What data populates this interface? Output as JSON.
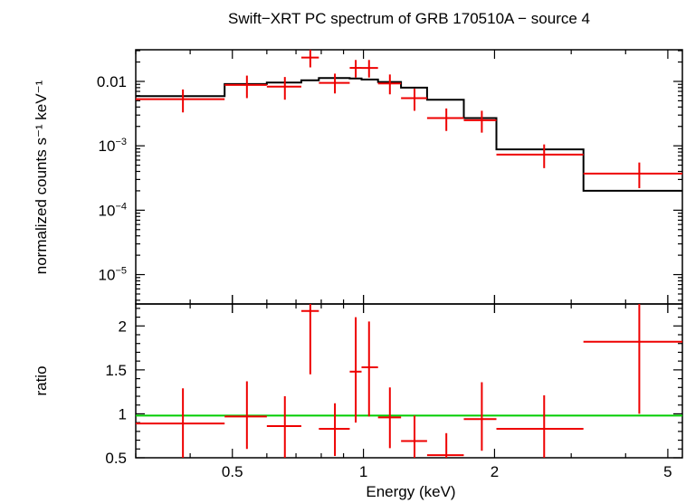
{
  "chart_data": {
    "type": "scatter",
    "title": "Swift−XRT PC spectrum of GRB 170510A − source 4",
    "xlabel": "Energy (keV)",
    "x_scale": "log",
    "xlim": [
      0.3,
      5.4
    ],
    "x_ticks": [
      {
        "value": 0.5,
        "label": "0.5"
      },
      {
        "value": 1,
        "label": "1"
      },
      {
        "value": 2,
        "label": "2"
      },
      {
        "value": 5,
        "label": "5"
      }
    ],
    "colors": {
      "data": "#ee0000",
      "model": "#000000",
      "unity": "#00cc00"
    },
    "top_panel": {
      "ylabel": "normalized counts s⁻¹ keV⁻¹",
      "y_scale": "log",
      "ylim": [
        3.5e-06,
        0.031
      ],
      "y_ticks": [
        {
          "value": 0.01,
          "label": "0.01"
        },
        {
          "value": 0.001,
          "base": "10",
          "exp": "−3"
        },
        {
          "value": 0.0001,
          "base": "10",
          "exp": "−4"
        },
        {
          "value": 1e-05,
          "base": "10",
          "exp": "−5"
        }
      ],
      "data": [
        {
          "xlo": 0.3,
          "xhi": 0.48,
          "x": 0.385,
          "y": 0.0053,
          "ylo": 0.0033,
          "yhi": 0.0075
        },
        {
          "xlo": 0.48,
          "xhi": 0.6,
          "x": 0.54,
          "y": 0.0088,
          "ylo": 0.0055,
          "yhi": 0.0123
        },
        {
          "xlo": 0.6,
          "xhi": 0.72,
          "x": 0.66,
          "y": 0.0083,
          "ylo": 0.0052,
          "yhi": 0.0117
        },
        {
          "xlo": 0.72,
          "xhi": 0.79,
          "x": 0.755,
          "y": 0.0235,
          "ylo": 0.0165,
          "yhi": 0.031
        },
        {
          "xlo": 0.79,
          "xhi": 0.93,
          "x": 0.86,
          "y": 0.0095,
          "ylo": 0.0065,
          "yhi": 0.0132
        },
        {
          "xlo": 0.93,
          "xhi": 0.99,
          "x": 0.96,
          "y": 0.0162,
          "ylo": 0.0115,
          "yhi": 0.0215
        },
        {
          "xlo": 0.99,
          "xhi": 1.08,
          "x": 1.03,
          "y": 0.0162,
          "ylo": 0.0115,
          "yhi": 0.0215
        },
        {
          "xlo": 1.08,
          "xhi": 1.22,
          "x": 1.15,
          "y": 0.0093,
          "ylo": 0.0063,
          "yhi": 0.0128
        },
        {
          "xlo": 1.22,
          "xhi": 1.4,
          "x": 1.31,
          "y": 0.0055,
          "ylo": 0.0035,
          "yhi": 0.0077
        },
        {
          "xlo": 1.4,
          "xhi": 1.7,
          "x": 1.55,
          "y": 0.0027,
          "ylo": 0.0017,
          "yhi": 0.0038
        },
        {
          "xlo": 1.7,
          "xhi": 2.02,
          "x": 1.87,
          "y": 0.0025,
          "ylo": 0.0016,
          "yhi": 0.0035
        },
        {
          "xlo": 2.02,
          "xhi": 3.2,
          "x": 2.6,
          "y": 0.00073,
          "ylo": 0.00045,
          "yhi": 0.00105
        },
        {
          "xlo": 3.2,
          "xhi": 5.4,
          "x": 4.3,
          "y": 0.00037,
          "ylo": 0.00022,
          "yhi": 0.00055
        }
      ],
      "model_steps": [
        {
          "xlo": 0.3,
          "xhi": 0.48,
          "y": 0.0059
        },
        {
          "xlo": 0.48,
          "xhi": 0.6,
          "y": 0.0091
        },
        {
          "xlo": 0.6,
          "xhi": 0.72,
          "y": 0.0096
        },
        {
          "xlo": 0.72,
          "xhi": 0.79,
          "y": 0.0104
        },
        {
          "xlo": 0.79,
          "xhi": 0.93,
          "y": 0.0113
        },
        {
          "xlo": 0.93,
          "xhi": 0.99,
          "y": 0.0111
        },
        {
          "xlo": 0.99,
          "xhi": 1.08,
          "y": 0.0107
        },
        {
          "xlo": 1.08,
          "xhi": 1.22,
          "y": 0.0098
        },
        {
          "xlo": 1.22,
          "xhi": 1.4,
          "y": 0.008
        },
        {
          "xlo": 1.4,
          "xhi": 1.7,
          "y": 0.0052
        },
        {
          "xlo": 1.7,
          "xhi": 2.02,
          "y": 0.0027
        },
        {
          "xlo": 2.02,
          "xhi": 3.2,
          "y": 0.00088
        },
        {
          "xlo": 3.2,
          "xhi": 5.4,
          "y": 0.0002
        }
      ]
    },
    "bottom_panel": {
      "ylabel": "ratio",
      "y_scale": "linear",
      "ylim": [
        0.5,
        2.25
      ],
      "y_ticks": [
        {
          "value": 0.5,
          "label": "0.5"
        },
        {
          "value": 1,
          "label": "1"
        },
        {
          "value": 1.5,
          "label": "1.5"
        },
        {
          "value": 2,
          "label": "2"
        }
      ],
      "unity_line": 0.98,
      "data": [
        {
          "xlo": 0.3,
          "xhi": 0.48,
          "x": 0.385,
          "y": 0.89,
          "ylo": 0.5,
          "yhi": 1.29
        },
        {
          "xlo": 0.48,
          "xhi": 0.6,
          "x": 0.54,
          "y": 0.97,
          "ylo": 0.6,
          "yhi": 1.37
        },
        {
          "xlo": 0.6,
          "xhi": 0.72,
          "x": 0.66,
          "y": 0.86,
          "ylo": 0.5,
          "yhi": 1.2
        },
        {
          "xlo": 0.72,
          "xhi": 0.79,
          "x": 0.755,
          "y": 2.17,
          "ylo": 1.45,
          "yhi": 2.25
        },
        {
          "xlo": 0.79,
          "xhi": 0.93,
          "x": 0.86,
          "y": 0.83,
          "ylo": 0.52,
          "yhi": 1.12
        },
        {
          "xlo": 0.93,
          "xhi": 0.99,
          "x": 0.96,
          "y": 1.48,
          "ylo": 0.9,
          "yhi": 2.1
        },
        {
          "xlo": 0.99,
          "xhi": 1.08,
          "x": 1.03,
          "y": 1.53,
          "ylo": 0.97,
          "yhi": 2.05
        },
        {
          "xlo": 1.08,
          "xhi": 1.22,
          "x": 1.15,
          "y": 0.96,
          "ylo": 0.61,
          "yhi": 1.3
        },
        {
          "xlo": 1.22,
          "xhi": 1.4,
          "x": 1.31,
          "y": 0.69,
          "ylo": 0.5,
          "yhi": 0.98
        },
        {
          "xlo": 1.4,
          "xhi": 1.7,
          "x": 1.55,
          "y": 0.53,
          "ylo": 0.5,
          "yhi": 0.78
        },
        {
          "xlo": 1.7,
          "xhi": 2.02,
          "x": 1.87,
          "y": 0.94,
          "ylo": 0.58,
          "yhi": 1.36
        },
        {
          "xlo": 2.02,
          "xhi": 3.2,
          "x": 2.6,
          "y": 0.83,
          "ylo": 0.5,
          "yhi": 1.21
        },
        {
          "xlo": 3.2,
          "xhi": 5.4,
          "x": 4.3,
          "y": 1.82,
          "ylo": 1.0,
          "yhi": 2.25
        }
      ]
    }
  }
}
